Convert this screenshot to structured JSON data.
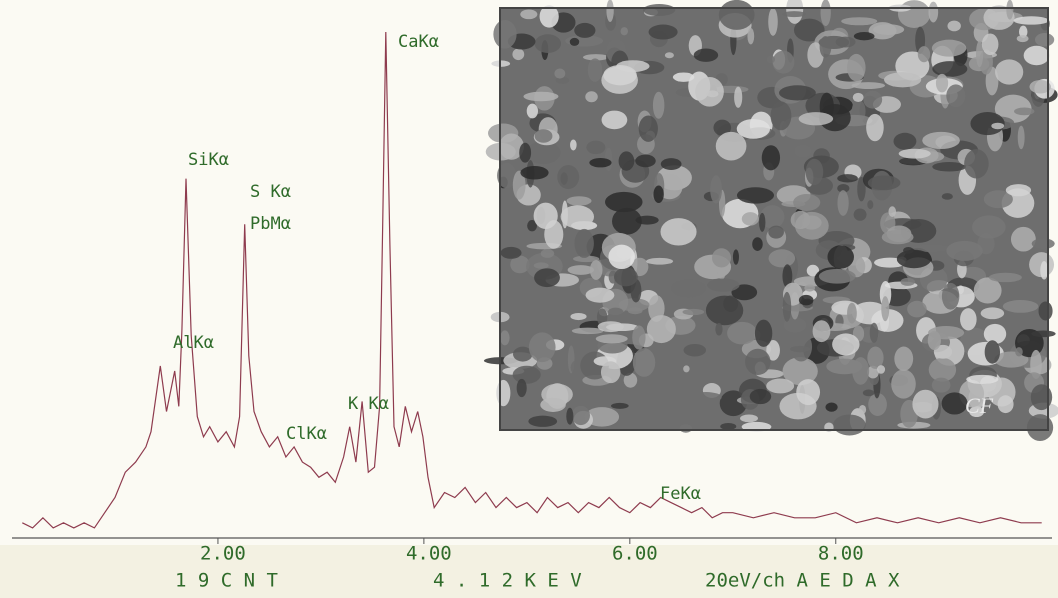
{
  "chart_data": {
    "type": "line",
    "x": [
      0.1,
      0.2,
      0.3,
      0.4,
      0.5,
      0.6,
      0.7,
      0.8,
      0.9,
      1.0,
      1.1,
      1.2,
      1.3,
      1.35,
      1.44,
      1.5,
      1.58,
      1.62,
      1.65,
      1.69,
      1.74,
      1.8,
      1.86,
      1.92,
      2.0,
      2.08,
      2.16,
      2.21,
      2.26,
      2.3,
      2.35,
      2.42,
      2.5,
      2.58,
      2.66,
      2.74,
      2.82,
      2.9,
      2.98,
      3.06,
      3.14,
      3.22,
      3.28,
      3.34,
      3.4,
      3.46,
      3.52,
      3.57,
      3.6,
      3.63,
      3.67,
      3.71,
      3.76,
      3.82,
      3.88,
      3.94,
      3.99,
      4.04,
      4.1,
      4.2,
      4.3,
      4.4,
      4.5,
      4.6,
      4.7,
      4.8,
      4.9,
      5.0,
      5.1,
      5.2,
      5.3,
      5.4,
      5.5,
      5.6,
      5.7,
      5.8,
      5.9,
      6.0,
      6.1,
      6.2,
      6.3,
      6.4,
      6.5,
      6.6,
      6.7,
      6.8,
      6.9,
      7.0,
      7.2,
      7.4,
      7.6,
      7.8,
      8.0,
      8.2,
      8.4,
      8.6,
      8.8,
      9.0,
      9.2,
      9.4,
      9.6,
      9.8,
      10.0
    ],
    "series": [
      {
        "color": "#8e3b4e",
        "values": [
          3,
          2,
          4,
          2,
          3,
          2,
          3,
          2,
          5,
          8,
          13,
          15,
          18,
          21,
          34,
          25,
          33,
          26,
          41,
          71,
          40,
          24,
          20,
          22,
          19,
          21,
          18,
          24,
          62,
          36,
          25,
          21,
          18,
          20,
          16,
          18,
          15,
          14,
          12,
          13,
          11,
          16,
          22,
          15,
          27,
          13,
          14,
          26,
          62,
          100,
          58,
          22,
          18,
          26,
          21,
          25,
          20,
          12,
          6,
          9,
          8,
          10,
          7,
          9,
          6,
          8,
          6,
          7,
          5,
          8,
          6,
          7,
          5,
          7,
          6,
          8,
          6,
          5,
          7,
          6,
          8,
          7,
          6,
          5,
          6,
          4,
          5,
          5,
          4,
          5,
          4,
          4,
          5,
          3,
          4,
          3,
          4,
          3,
          4,
          3,
          4,
          3,
          3
        ]
      }
    ],
    "xlim": [
      0,
      10.1
    ],
    "ylim": [
      0,
      100
    ],
    "xticks": [
      {
        "value": 2,
        "label": "2.00"
      },
      {
        "value": 4,
        "label": "4.00"
      },
      {
        "value": 6,
        "label": "6.00"
      },
      {
        "value": 8,
        "label": "8.00"
      }
    ],
    "annotations": [
      "CaKα",
      "SiKα",
      "S Kα",
      "PbMα",
      "AlKα",
      "ClKα",
      "K Kα",
      "FeKα"
    ],
    "footer": [
      "1 9 C N T",
      "4 . 1 2 K E V",
      "20eV/ch A E D A X"
    ],
    "inset_label": "CF"
  }
}
